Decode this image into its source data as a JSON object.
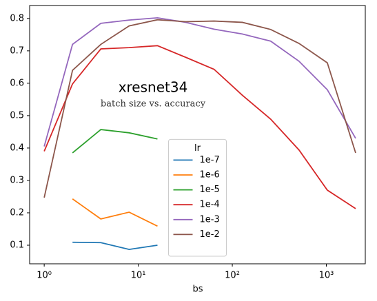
{
  "chart_data": {
    "type": "line",
    "annotations": [
      "xresnet34",
      "batch size vs. accuracy"
    ],
    "xlabel": "bs",
    "xscale": "log",
    "xlim": [
      0.7,
      2594
    ],
    "xticks": [
      {
        "value": 1,
        "label": "10⁰"
      },
      {
        "value": 10,
        "label": "10¹"
      },
      {
        "value": 100,
        "label": "10²"
      },
      {
        "value": 1000,
        "label": "10³"
      }
    ],
    "ylim": [
      0.0426,
      0.84
    ],
    "yticks": [
      0.1,
      0.2,
      0.3,
      0.4,
      0.5,
      0.6,
      0.7,
      0.8
    ],
    "legend_title": "lr",
    "legend_loc": "lower center",
    "series": [
      {
        "name": "1e-7",
        "color": "#1f77b4",
        "x": [
          2,
          4,
          8,
          16
        ],
        "values": [
          0.109,
          0.108,
          0.087,
          0.1
        ]
      },
      {
        "name": "1e-6",
        "color": "#ff7f0e",
        "x": [
          2,
          4,
          8,
          16
        ],
        "values": [
          0.243,
          0.181,
          0.202,
          0.159
        ]
      },
      {
        "name": "1e-5",
        "color": "#2ca02c",
        "x": [
          2,
          4,
          8,
          16
        ],
        "values": [
          0.385,
          0.457,
          0.447,
          0.428
        ]
      },
      {
        "name": "1e-4",
        "color": "#d62728",
        "x": [
          1,
          2,
          4,
          8,
          16,
          32,
          64,
          128,
          256,
          512,
          1024,
          2048
        ],
        "values": [
          0.39,
          0.598,
          0.706,
          0.71,
          0.716,
          0.68,
          0.643,
          0.563,
          0.489,
          0.394,
          0.27,
          0.213
        ]
      },
      {
        "name": "1e-3",
        "color": "#9467bd",
        "x": [
          1,
          2,
          4,
          8,
          16,
          32,
          64,
          128,
          256,
          512,
          1024,
          2048
        ],
        "values": [
          0.405,
          0.72,
          0.785,
          0.795,
          0.802,
          0.788,
          0.767,
          0.752,
          0.73,
          0.668,
          0.58,
          0.43
        ]
      },
      {
        "name": "1e-2",
        "color": "#8c564b",
        "x": [
          1,
          2,
          4,
          8,
          16,
          32,
          64,
          128,
          256,
          512,
          1024,
          2048
        ],
        "values": [
          0.247,
          0.64,
          0.72,
          0.777,
          0.796,
          0.79,
          0.792,
          0.788,
          0.766,
          0.723,
          0.663,
          0.385
        ]
      }
    ]
  }
}
